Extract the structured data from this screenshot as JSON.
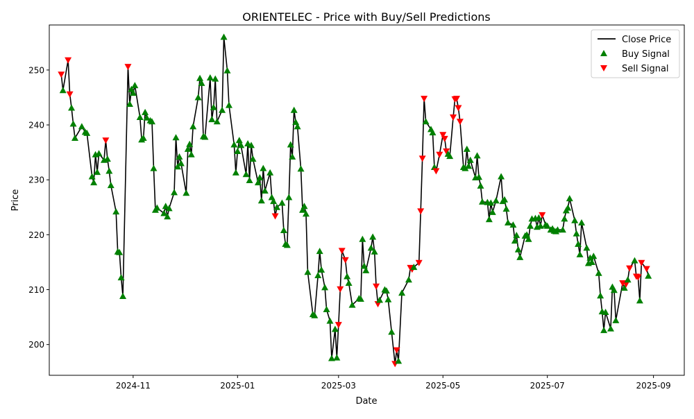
{
  "chart_data": {
    "type": "line",
    "title": "ORIENTELEC - Price with Buy/Sell Predictions",
    "xlabel": "Date",
    "ylabel": "Price",
    "xlim": [
      "2024-09-13",
      "2025-09-19"
    ],
    "ylim": [
      194.4,
      258.2
    ],
    "grid": false,
    "legend_position": "top-right",
    "x_ticks": [
      {
        "date": "2024-11-01",
        "label": "2024-11"
      },
      {
        "date": "2025-01-01",
        "label": "2025-01"
      },
      {
        "date": "2025-03-01",
        "label": "2025-03"
      },
      {
        "date": "2025-05-01",
        "label": "2025-05"
      },
      {
        "date": "2025-07-01",
        "label": "2025-07"
      },
      {
        "date": "2025-09-01",
        "label": "2025-09"
      }
    ],
    "y_ticks": [
      200,
      210,
      220,
      230,
      240,
      250
    ],
    "series": [
      {
        "name": "Close Price",
        "kind": "line",
        "color": "#000000"
      },
      {
        "name": "Buy Signal",
        "kind": "marker",
        "marker": "triangle-up",
        "color": "#008000"
      },
      {
        "name": "Sell Signal",
        "kind": "marker",
        "marker": "triangle-down",
        "color": "#ff0000"
      }
    ],
    "points": [
      [
        "2024-09-20",
        249.2,
        "S"
      ],
      [
        "2024-09-21",
        246.3,
        "B"
      ],
      [
        "2024-09-24",
        251.8,
        "S"
      ],
      [
        "2024-09-25",
        245.6,
        "S"
      ],
      [
        "2024-09-26",
        243.1,
        "B"
      ],
      [
        "2024-09-27",
        240.2,
        "B"
      ],
      [
        "2024-09-28",
        237.6,
        "B"
      ],
      [
        "2024-10-02",
        239.7,
        "B"
      ],
      [
        "2024-10-04",
        238.7,
        "B"
      ],
      [
        "2024-10-05",
        238.5,
        "B"
      ],
      [
        "2024-10-08",
        230.6,
        "B"
      ],
      [
        "2024-10-09",
        229.5,
        "B"
      ],
      [
        "2024-10-10",
        234.6,
        "B"
      ],
      [
        "2024-10-11",
        231.4,
        "B"
      ],
      [
        "2024-10-12",
        234.8,
        "B"
      ],
      [
        "2024-10-15",
        233.6,
        "B"
      ],
      [
        "2024-10-16",
        237.2,
        "S"
      ],
      [
        "2024-10-17",
        233.8,
        "B"
      ],
      [
        "2024-10-18",
        231.6,
        "B"
      ],
      [
        "2024-10-19",
        229.0,
        "B"
      ],
      [
        "2024-10-22",
        224.2,
        "B"
      ],
      [
        "2024-10-23",
        216.9,
        "B"
      ],
      [
        "2024-10-24",
        216.8,
        "B"
      ],
      [
        "2024-10-25",
        212.2,
        "B"
      ],
      [
        "2024-10-26",
        208.8,
        "B"
      ],
      [
        "2024-10-29",
        250.6,
        "S"
      ],
      [
        "2024-10-30",
        243.8,
        "B"
      ],
      [
        "2024-10-31",
        246.5,
        "B"
      ],
      [
        "2024-11-01",
        245.8,
        "B"
      ],
      [
        "2024-11-02",
        247.2,
        "B"
      ],
      [
        "2024-11-05",
        241.4,
        "B"
      ],
      [
        "2024-11-06",
        237.3,
        "B"
      ],
      [
        "2024-11-07",
        237.6,
        "B"
      ],
      [
        "2024-11-08",
        242.3,
        "B"
      ],
      [
        "2024-11-09",
        241.3,
        "B"
      ],
      [
        "2024-11-11",
        240.8,
        "B"
      ],
      [
        "2024-11-12",
        240.6,
        "B"
      ],
      [
        "2024-11-13",
        232.1,
        "B"
      ],
      [
        "2024-11-14",
        224.5,
        "B"
      ],
      [
        "2024-11-15",
        224.9,
        "B"
      ],
      [
        "2024-11-19",
        223.9,
        "B"
      ],
      [
        "2024-11-20",
        225.2,
        "B"
      ],
      [
        "2024-11-21",
        223.3,
        "B"
      ],
      [
        "2024-11-22",
        224.8,
        "B"
      ],
      [
        "2024-11-25",
        227.7,
        "B"
      ],
      [
        "2024-11-26",
        237.7,
        "B"
      ],
      [
        "2024-11-27",
        232.4,
        "B"
      ],
      [
        "2024-11-28",
        234.2,
        "B"
      ],
      [
        "2024-11-29",
        233.0,
        "B"
      ],
      [
        "2024-12-02",
        227.6,
        "B"
      ],
      [
        "2024-12-03",
        235.6,
        "B"
      ],
      [
        "2024-12-04",
        236.5,
        "B"
      ],
      [
        "2024-12-05",
        234.6,
        "B"
      ],
      [
        "2024-12-06",
        239.7,
        "B"
      ],
      [
        "2024-12-09",
        245.0,
        "B"
      ],
      [
        "2024-12-10",
        248.5,
        "B"
      ],
      [
        "2024-12-11",
        247.6,
        "B"
      ],
      [
        "2024-12-12",
        237.9,
        "B"
      ],
      [
        "2024-12-13",
        237.8,
        "B"
      ],
      [
        "2024-12-16",
        248.6,
        "B"
      ],
      [
        "2024-12-17",
        241.0,
        "B"
      ],
      [
        "2024-12-18",
        243.2,
        "B"
      ],
      [
        "2024-12-19",
        248.4,
        "B"
      ],
      [
        "2024-12-20",
        240.6,
        "B"
      ],
      [
        "2024-12-23",
        242.7,
        "B"
      ],
      [
        "2024-12-24",
        256.0,
        "B"
      ],
      [
        "2024-12-26",
        249.9,
        "B"
      ],
      [
        "2024-12-27",
        243.6,
        "B"
      ],
      [
        "2024-12-30",
        236.4,
        "B"
      ],
      [
        "2024-12-31",
        231.3,
        "B"
      ],
      [
        "2025-01-01",
        235.2,
        "B"
      ],
      [
        "2025-01-02",
        237.2,
        "B"
      ],
      [
        "2025-01-03",
        236.3,
        "B"
      ],
      [
        "2025-01-06",
        231.0,
        "B"
      ],
      [
        "2025-01-07",
        236.6,
        "B"
      ],
      [
        "2025-01-08",
        229.9,
        "B"
      ],
      [
        "2025-01-09",
        236.3,
        "B"
      ],
      [
        "2025-01-10",
        233.8,
        "B"
      ],
      [
        "2025-01-13",
        229.5,
        "B"
      ],
      [
        "2025-01-14",
        230.4,
        "B"
      ],
      [
        "2025-01-15",
        226.2,
        "B"
      ],
      [
        "2025-01-16",
        232.1,
        "B"
      ],
      [
        "2025-01-17",
        228.0,
        "B"
      ],
      [
        "2025-01-20",
        231.3,
        "B"
      ],
      [
        "2025-01-21",
        226.8,
        "B"
      ],
      [
        "2025-01-22",
        226.1,
        "B"
      ],
      [
        "2025-01-23",
        223.4,
        "S"
      ],
      [
        "2025-01-24",
        225.0,
        "B"
      ],
      [
        "2025-01-27",
        225.8,
        "B"
      ],
      [
        "2025-01-28",
        220.8,
        "B"
      ],
      [
        "2025-01-29",
        218.3,
        "B"
      ],
      [
        "2025-01-30",
        218.1,
        "B"
      ],
      [
        "2025-01-31",
        226.8,
        "B"
      ],
      [
        "2025-02-01",
        236.4,
        "B"
      ],
      [
        "2025-02-02",
        234.2,
        "B"
      ],
      [
        "2025-02-03",
        242.7,
        "B"
      ],
      [
        "2025-02-04",
        240.5,
        "B"
      ],
      [
        "2025-02-05",
        239.7,
        "B"
      ],
      [
        "2025-02-07",
        232.0,
        "B"
      ],
      [
        "2025-02-08",
        224.5,
        "B"
      ],
      [
        "2025-02-09",
        225.2,
        "B"
      ],
      [
        "2025-02-10",
        223.8,
        "B"
      ],
      [
        "2025-02-11",
        213.2,
        "B"
      ],
      [
        "2025-02-14",
        205.5,
        "B"
      ],
      [
        "2025-02-15",
        205.3,
        "B"
      ],
      [
        "2025-02-17",
        212.6,
        "B"
      ],
      [
        "2025-02-18",
        217.0,
        "B"
      ],
      [
        "2025-02-19",
        213.6,
        "B"
      ],
      [
        "2025-02-21",
        210.4,
        "B"
      ],
      [
        "2025-02-22",
        206.4,
        "B"
      ],
      [
        "2025-02-24",
        204.3,
        "B"
      ],
      [
        "2025-02-25",
        197.5,
        "B"
      ],
      [
        "2025-02-27",
        202.8,
        "B"
      ],
      [
        "2025-02-28",
        197.6,
        "B"
      ],
      [
        "2025-03-01",
        203.6,
        "S"
      ],
      [
        "2025-03-02",
        210.1,
        "S"
      ],
      [
        "2025-03-03",
        217.1,
        "S"
      ],
      [
        "2025-03-05",
        215.4,
        "S"
      ],
      [
        "2025-03-06",
        212.4,
        "B"
      ],
      [
        "2025-03-07",
        211.2,
        "B"
      ],
      [
        "2025-03-09",
        207.2,
        "B"
      ],
      [
        "2025-03-13",
        208.4,
        "B"
      ],
      [
        "2025-03-14",
        208.3,
        "B"
      ],
      [
        "2025-03-15",
        219.2,
        "B"
      ],
      [
        "2025-03-16",
        214.3,
        "B"
      ],
      [
        "2025-03-17",
        213.5,
        "B"
      ],
      [
        "2025-03-20",
        217.6,
        "B"
      ],
      [
        "2025-03-21",
        219.6,
        "B"
      ],
      [
        "2025-03-22",
        216.9,
        "B"
      ],
      [
        "2025-03-23",
        210.6,
        "S"
      ],
      [
        "2025-03-24",
        207.4,
        "S"
      ],
      [
        "2025-03-25",
        208.1,
        "B"
      ],
      [
        "2025-03-28",
        210.0,
        "B"
      ],
      [
        "2025-03-29",
        209.8,
        "B"
      ],
      [
        "2025-03-30",
        208.2,
        "B"
      ],
      [
        "2025-04-01",
        202.3,
        "B"
      ],
      [
        "2025-04-03",
        196.5,
        "S"
      ],
      [
        "2025-04-04",
        199.0,
        "S"
      ],
      [
        "2025-04-05",
        197.0,
        "B"
      ],
      [
        "2025-04-07",
        209.4,
        "B"
      ],
      [
        "2025-04-11",
        211.8,
        "B"
      ],
      [
        "2025-04-12",
        214.0,
        "S"
      ],
      [
        "2025-04-13",
        213.7,
        "S"
      ],
      [
        "2025-04-14",
        214.1,
        "B"
      ],
      [
        "2025-04-17",
        214.9,
        "S"
      ],
      [
        "2025-04-18",
        224.3,
        "S"
      ],
      [
        "2025-04-19",
        233.9,
        "S"
      ],
      [
        "2025-04-20",
        244.8,
        "S"
      ],
      [
        "2025-04-21",
        240.6,
        "B"
      ],
      [
        "2025-04-24",
        239.2,
        "B"
      ],
      [
        "2025-04-25",
        238.6,
        "B"
      ],
      [
        "2025-04-26",
        232.3,
        "B"
      ],
      [
        "2025-04-27",
        231.6,
        "S"
      ],
      [
        "2025-04-29",
        234.6,
        "S"
      ],
      [
        "2025-05-01",
        238.2,
        "S"
      ],
      [
        "2025-05-02",
        237.5,
        "S"
      ],
      [
        "2025-05-03",
        235.2,
        "S"
      ],
      [
        "2025-05-04",
        234.7,
        "B"
      ],
      [
        "2025-05-05",
        234.3,
        "B"
      ],
      [
        "2025-05-07",
        241.4,
        "S"
      ],
      [
        "2025-05-08",
        244.7,
        "S"
      ],
      [
        "2025-05-09",
        244.8,
        "S"
      ],
      [
        "2025-05-10",
        243.1,
        "S"
      ],
      [
        "2025-05-11",
        240.6,
        "S"
      ],
      [
        "2025-05-13",
        232.3,
        "B"
      ],
      [
        "2025-05-14",
        232.1,
        "B"
      ],
      [
        "2025-05-15",
        235.6,
        "B"
      ],
      [
        "2025-05-16",
        232.5,
        "B"
      ],
      [
        "2025-05-17",
        233.6,
        "B"
      ],
      [
        "2025-05-20",
        230.4,
        "B"
      ],
      [
        "2025-05-21",
        234.4,
        "B"
      ],
      [
        "2025-05-22",
        230.5,
        "B"
      ],
      [
        "2025-05-23",
        228.9,
        "B"
      ],
      [
        "2025-05-24",
        226.0,
        "B"
      ],
      [
        "2025-05-27",
        225.9,
        "B"
      ],
      [
        "2025-05-28",
        222.8,
        "B"
      ],
      [
        "2025-05-29",
        225.8,
        "B"
      ],
      [
        "2025-05-30",
        224.1,
        "B"
      ],
      [
        "2025-06-01",
        226.2,
        "B"
      ],
      [
        "2025-06-04",
        230.6,
        "B"
      ],
      [
        "2025-06-05",
        226.1,
        "B"
      ],
      [
        "2025-06-06",
        226.4,
        "B"
      ],
      [
        "2025-06-07",
        224.7,
        "B"
      ],
      [
        "2025-06-08",
        222.2,
        "B"
      ],
      [
        "2025-06-11",
        221.8,
        "B"
      ],
      [
        "2025-06-12",
        218.9,
        "B"
      ],
      [
        "2025-06-13",
        219.9,
        "B"
      ],
      [
        "2025-06-14",
        217.3,
        "B"
      ],
      [
        "2025-06-15",
        215.9,
        "B"
      ],
      [
        "2025-06-18",
        219.8,
        "B"
      ],
      [
        "2025-06-19",
        220.0,
        "B"
      ],
      [
        "2025-06-20",
        219.2,
        "B"
      ],
      [
        "2025-06-21",
        221.6,
        "B"
      ],
      [
        "2025-06-22",
        222.9,
        "B"
      ],
      [
        "2025-06-24",
        223.0,
        "B"
      ],
      [
        "2025-06-25",
        221.4,
        "B"
      ],
      [
        "2025-06-26",
        223.1,
        "B"
      ],
      [
        "2025-06-27",
        221.6,
        "B"
      ],
      [
        "2025-06-28",
        223.6,
        "S"
      ],
      [
        "2025-06-30",
        221.8,
        "B"
      ],
      [
        "2025-07-01",
        221.6,
        "B"
      ],
      [
        "2025-07-03",
        220.9,
        "B"
      ],
      [
        "2025-07-04",
        221.1,
        "B"
      ],
      [
        "2025-07-05",
        220.7,
        "B"
      ],
      [
        "2025-07-06",
        220.6,
        "B"
      ],
      [
        "2025-07-07",
        220.9,
        "B"
      ],
      [
        "2025-07-10",
        220.9,
        "B"
      ],
      [
        "2025-07-11",
        222.9,
        "B"
      ],
      [
        "2025-07-12",
        224.4,
        "B"
      ],
      [
        "2025-07-13",
        224.9,
        "B"
      ],
      [
        "2025-07-14",
        226.6,
        "B"
      ],
      [
        "2025-07-17",
        222.6,
        "B"
      ],
      [
        "2025-07-18",
        220.2,
        "B"
      ],
      [
        "2025-07-19",
        218.3,
        "B"
      ],
      [
        "2025-07-20",
        216.4,
        "B"
      ],
      [
        "2025-07-21",
        222.2,
        "B"
      ],
      [
        "2025-07-24",
        217.6,
        "B"
      ],
      [
        "2025-07-25",
        214.8,
        "B"
      ],
      [
        "2025-07-26",
        215.8,
        "B"
      ],
      [
        "2025-07-27",
        215.0,
        "B"
      ],
      [
        "2025-07-28",
        216.1,
        "B"
      ],
      [
        "2025-07-31",
        213.0,
        "B"
      ],
      [
        "2025-08-01",
        208.9,
        "B"
      ],
      [
        "2025-08-02",
        206.0,
        "B"
      ],
      [
        "2025-08-03",
        202.6,
        "B"
      ],
      [
        "2025-08-04",
        205.9,
        "B"
      ],
      [
        "2025-08-07",
        202.9,
        "B"
      ],
      [
        "2025-08-08",
        210.5,
        "B"
      ],
      [
        "2025-08-09",
        209.9,
        "B"
      ],
      [
        "2025-08-10",
        204.4,
        "B"
      ],
      [
        "2025-08-14",
        211.2,
        "S"
      ],
      [
        "2025-08-15",
        210.3,
        "B"
      ],
      [
        "2025-08-16",
        211.0,
        "S"
      ],
      [
        "2025-08-17",
        211.8,
        "B"
      ],
      [
        "2025-08-18",
        213.9,
        "S"
      ],
      [
        "2025-08-21",
        215.3,
        "B"
      ],
      [
        "2025-08-22",
        212.4,
        "S"
      ],
      [
        "2025-08-23",
        212.3,
        "S"
      ],
      [
        "2025-08-24",
        208.0,
        "B"
      ],
      [
        "2025-08-25",
        214.9,
        "S"
      ],
      [
        "2025-08-28",
        213.8,
        "S"
      ],
      [
        "2025-08-29",
        212.5,
        "B"
      ]
    ]
  }
}
